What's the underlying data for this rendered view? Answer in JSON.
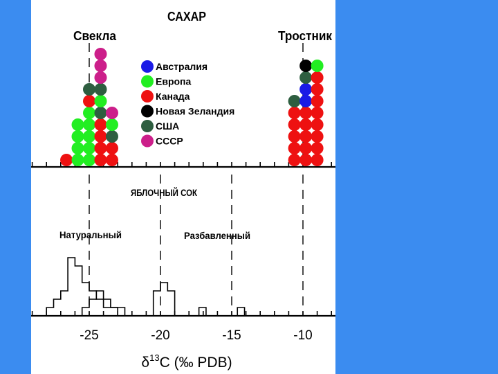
{
  "colors": {
    "background_panel": "#3b8cf0",
    "axis": "#000000"
  },
  "chart_data": [
    {
      "type": "dot-histogram",
      "title": "САХАР",
      "group_labels": [
        "Свекла",
        "Тростник"
      ],
      "legend": [
        {
          "label": "Австралия",
          "color": "#1a1ae6"
        },
        {
          "label": "Европа",
          "color": "#22ee22"
        },
        {
          "label": "Канада",
          "color": "#ee1111"
        },
        {
          "label": "Новая Зеландия",
          "color": "#000000"
        },
        {
          "label": "США",
          "color": "#2e5e40"
        },
        {
          "label": "СССР",
          "color": "#cc1f8a"
        }
      ],
      "columns": [
        {
          "x": -26.6,
          "stack": [
            "Канада"
          ]
        },
        {
          "x": -25.8,
          "stack": [
            "Европа",
            "Европа",
            "Европа",
            "Европа"
          ]
        },
        {
          "x": -25.0,
          "stack": [
            "Европа",
            "Европа",
            "Европа",
            "Европа",
            "Европа",
            "Канада",
            "США"
          ]
        },
        {
          "x": -24.2,
          "stack": [
            "Канада",
            "Канада",
            "Канада",
            "Канада",
            "США",
            "Европа",
            "США",
            "СССР",
            "СССР",
            "СССР"
          ]
        },
        {
          "x": -23.4,
          "stack": [
            "Канада",
            "Канада",
            "США",
            "Европа",
            "СССР"
          ]
        },
        {
          "x": -10.6,
          "stack": [
            "Канада",
            "Канада",
            "Канада",
            "Канада",
            "Канада",
            "США"
          ]
        },
        {
          "x": -9.8,
          "stack": [
            "Канада",
            "Канада",
            "Канада",
            "Канада",
            "Канада",
            "Австралия",
            "Австралия",
            "США",
            "Новая Зеландия"
          ]
        },
        {
          "x": -9.0,
          "stack": [
            "Канада",
            "Канада",
            "Канада",
            "Канада",
            "Канада",
            "Канада",
            "Канада",
            "Канада",
            "Европа"
          ]
        }
      ],
      "reference_lines_x": [
        -25,
        -10
      ]
    },
    {
      "type": "histogram",
      "title": "ЯБЛОЧНЫЙ СОК",
      "series": [
        {
          "name": "Натуральный",
          "bins": [
            [
              -28,
              -27.5,
              1
            ],
            [
              -27.5,
              -27,
              2
            ],
            [
              -27,
              -26.5,
              3
            ],
            [
              -26.5,
              -26,
              7
            ],
            [
              -26,
              -25.5,
              6
            ],
            [
              -25.5,
              -25,
              4
            ],
            [
              -25,
              -24.5,
              3
            ],
            [
              -24.5,
              -24,
              2
            ],
            [
              -24,
              -23.5,
              1
            ],
            [
              -23.5,
              -23,
              1
            ],
            [
              -23,
              -22.5,
              1
            ]
          ]
        },
        {
          "name": "Разбавленный",
          "bins": [
            [
              -25.5,
              -25,
              1
            ],
            [
              -25,
              -24.5,
              2
            ],
            [
              -24.5,
              -24,
              3
            ],
            [
              -24,
              -23.5,
              2
            ],
            [
              -23.5,
              -23,
              1
            ],
            [
              -20.5,
              -20,
              3
            ],
            [
              -20,
              -19.5,
              4
            ],
            [
              -19.5,
              -19,
              3
            ],
            [
              -17.3,
              -16.8,
              1
            ],
            [
              -14.6,
              -14.1,
              1
            ]
          ]
        }
      ],
      "reference_lines_x": [
        -25,
        -20,
        -15,
        -10
      ],
      "xlabel": "δ13C (‰ PDB)",
      "xticks": [
        -25,
        -20,
        -15,
        -10
      ],
      "xtick_labels": [
        "-25",
        "-20",
        "-15",
        "-10"
      ],
      "xlim": [
        -29,
        -7.5
      ]
    }
  ],
  "labels": {
    "sugar_title": "САХАР",
    "beet": "Свекла",
    "cane": "Тростник",
    "apple_title": "ЯБЛОЧНЫЙ СОК",
    "natural": "Натуральный",
    "diluted": "Разбавленный",
    "xlabel_delta": "δ",
    "xlabel_sup": "13",
    "xlabel_rest": "C (‰ PDB)"
  }
}
